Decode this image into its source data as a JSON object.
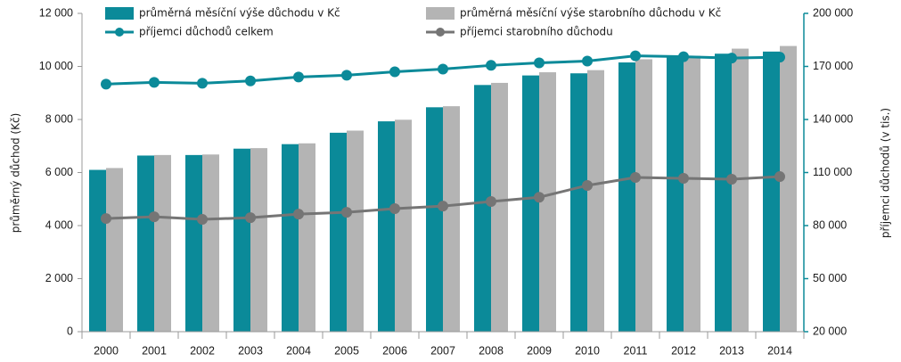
{
  "chart_data": {
    "type": "bar_line",
    "y_label": "průměrný důchod (Kč)",
    "y2_label": "příjemci důchodů (v tis.)",
    "categories": [
      "2000",
      "2001",
      "2002",
      "2003",
      "2004",
      "2005",
      "2006",
      "2007",
      "2008",
      "2009",
      "2010",
      "2011",
      "2012",
      "2013",
      "2014"
    ],
    "series": [
      {
        "name": "průměrná měsíční výše důchodu v Kč",
        "type": "bar",
        "color": "#0b8a99",
        "values": [
          6100,
          6640,
          6660,
          6900,
          7070,
          7500,
          7930,
          8460,
          9300,
          9660,
          9740,
          10150,
          10380,
          10480,
          10560
        ]
      },
      {
        "name": "průměrná měsíční výše starobního důchodu v Kč",
        "type": "bar",
        "color": "#b4b4b4",
        "values": [
          6170,
          6660,
          6680,
          6920,
          7100,
          7580,
          7990,
          8500,
          9380,
          9780,
          9860,
          10270,
          10400,
          10670,
          10770
        ]
      },
      {
        "name": "příjemci důchodů celkem",
        "type": "line",
        "axis": "y2",
        "color": "#0b8a99",
        "values": [
          160000,
          161000,
          160500,
          161800,
          164000,
          165000,
          167000,
          168500,
          170600,
          172000,
          173000,
          176000,
          175500,
          174700,
          175200
        ]
      },
      {
        "name": "příjemci starobního důchodu",
        "type": "line",
        "axis": "y2",
        "color": "#757575",
        "values": [
          84000,
          85000,
          83500,
          84500,
          86500,
          87500,
          89600,
          91000,
          93600,
          96000,
          102700,
          107200,
          106700,
          106200,
          107700
        ]
      }
    ],
    "ylim": [
      0,
      12000
    ],
    "yticks": [
      0,
      {
        "value": 2000,
        "label": "2 000"
      },
      {
        "value": 4000,
        "label": "4 000"
      },
      {
        "value": 6000,
        "label": "6 000"
      },
      {
        "value": 8000,
        "label": "8 000"
      },
      {
        "value": 10000,
        "label": "10 000"
      },
      {
        "value": 12000,
        "label": "12 000"
      }
    ],
    "y2lim": [
      20000,
      200000
    ],
    "y2ticks": [
      {
        "value": 20000,
        "label": "20 000"
      },
      {
        "value": 50000,
        "label": "50 000"
      },
      {
        "value": 80000,
        "label": "80 000"
      },
      {
        "value": 110000,
        "label": "110 000"
      },
      {
        "value": 140000,
        "label": "140 000"
      },
      {
        "value": 170000,
        "label": "170 000"
      },
      {
        "value": 200000,
        "label": "200 000"
      }
    ],
    "legend": "top"
  }
}
